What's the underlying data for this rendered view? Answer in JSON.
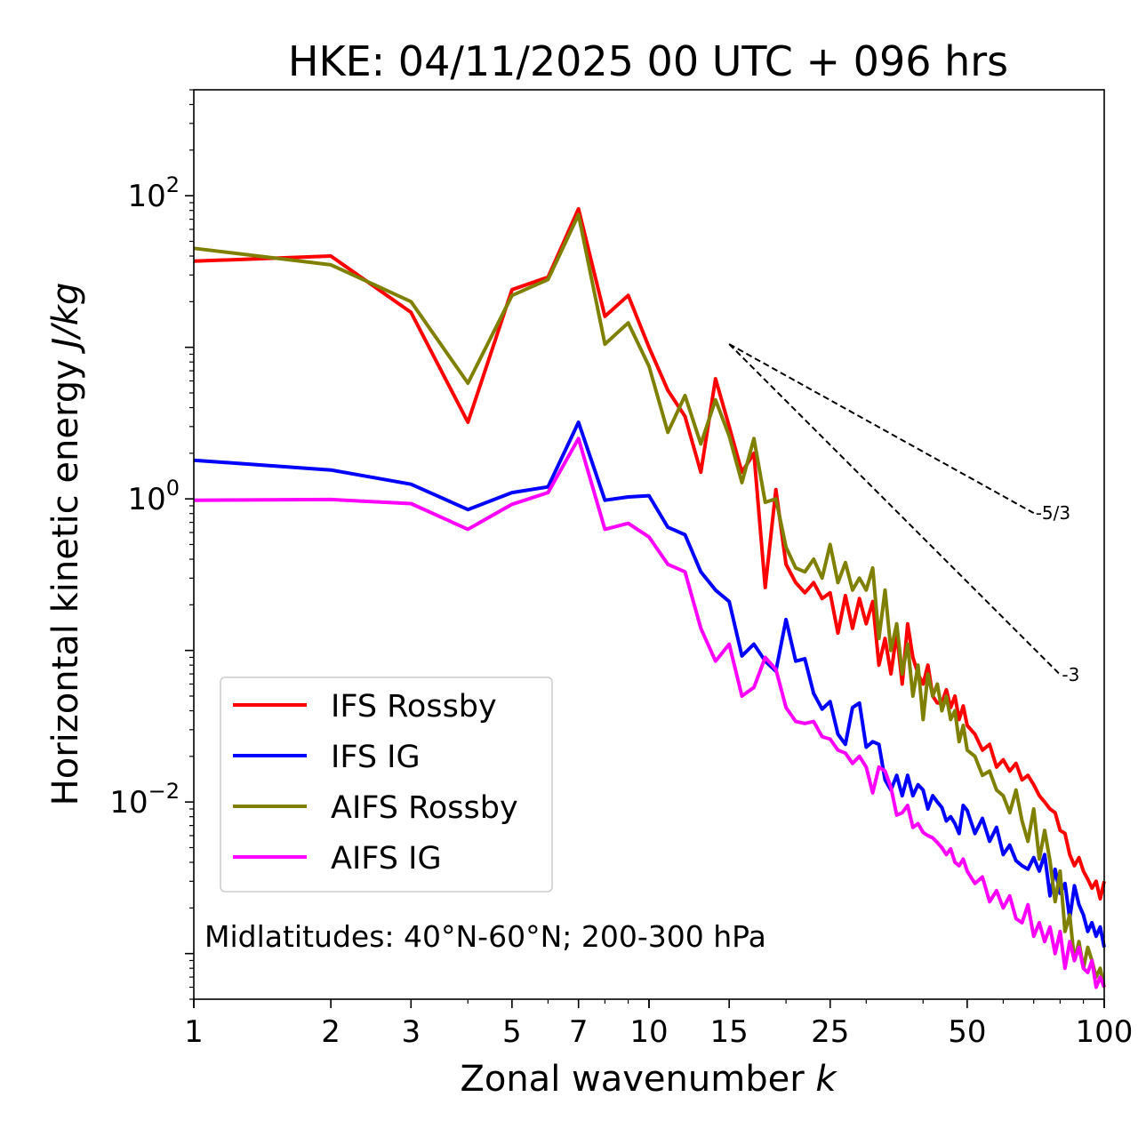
{
  "chart_data": {
    "type": "line",
    "title": "HKE: 04/11/2025 00 UTC + 096 hrs",
    "xlabel_text": "Zonal wavenumber ",
    "xlabel_var": "k",
    "ylabel_text": "Horizontal kinetic energy ",
    "ylabel_unit": "J/kg",
    "xscale": "log",
    "yscale": "log",
    "xlim": [
      1,
      100
    ],
    "ylim": [
      0.0005,
      500
    ],
    "xticks": [
      1,
      2,
      3,
      5,
      7,
      10,
      15,
      25,
      50,
      100
    ],
    "xtick_labels": [
      "1",
      "2",
      "3",
      "5",
      "7",
      "10",
      "15",
      "25",
      "50",
      "100"
    ],
    "yticks": [
      {
        "value": 100,
        "base": "10",
        "exp": "2"
      },
      {
        "value": 1,
        "base": "10",
        "exp": "0"
      },
      {
        "value": 0.01,
        "base": "10",
        "exp": "−2"
      }
    ],
    "legend_position": "lower-left",
    "annotation": "Midlatitudes: 40°N-60°N; 200-300 hPa",
    "reference_lines": [
      {
        "label": "-5/3",
        "slope": -1.6667,
        "x0": 15,
        "y0": 10.5,
        "x1": 70
      },
      {
        "label": "-3",
        "slope": -3,
        "x0": 15,
        "y0": 10.5,
        "x1": 80
      }
    ],
    "series": [
      {
        "name": "IFS Rossby",
        "color": "#ff0000",
        "x": [
          1,
          2,
          3,
          4,
          5,
          6,
          7,
          8,
          9,
          10,
          11,
          12,
          13,
          14,
          15,
          16,
          17,
          18,
          19,
          20,
          21,
          22,
          23,
          24,
          25,
          26,
          27,
          28,
          29,
          30,
          31,
          32,
          33,
          34,
          35,
          36,
          37,
          38,
          39,
          40,
          41,
          42,
          43,
          44,
          45,
          46,
          47,
          48,
          49,
          50,
          52,
          54,
          56,
          58,
          60,
          62,
          64,
          66,
          68,
          70,
          72,
          74,
          76,
          78,
          80,
          82,
          84,
          86,
          88,
          90,
          92,
          94,
          96,
          98,
          100
        ],
        "values": [
          37,
          40,
          17,
          3.2,
          24,
          29,
          82,
          16,
          22,
          10,
          5.2,
          3.5,
          1.5,
          6.2,
          3.0,
          1.5,
          2.0,
          0.26,
          1.15,
          0.37,
          0.28,
          0.24,
          0.28,
          0.22,
          0.24,
          0.13,
          0.23,
          0.14,
          0.22,
          0.15,
          0.21,
          0.08,
          0.12,
          0.07,
          0.13,
          0.06,
          0.15,
          0.09,
          0.07,
          0.06,
          0.08,
          0.05,
          0.045,
          0.045,
          0.055,
          0.042,
          0.05,
          0.035,
          0.043,
          0.032,
          0.028,
          0.022,
          0.024,
          0.017,
          0.019,
          0.016,
          0.018,
          0.014,
          0.015,
          0.013,
          0.011,
          0.01,
          0.009,
          0.0085,
          0.0065,
          0.0062,
          0.0045,
          0.0038,
          0.0043,
          0.0035,
          0.0031,
          0.0027,
          0.003,
          0.0023,
          0.003
        ]
      },
      {
        "name": "IFS IG",
        "color": "#0000ff",
        "x": [
          1,
          2,
          3,
          4,
          5,
          6,
          7,
          8,
          9,
          10,
          11,
          12,
          13,
          14,
          15,
          16,
          17,
          18,
          19,
          20,
          21,
          22,
          23,
          24,
          25,
          26,
          27,
          28,
          29,
          30,
          31,
          32,
          33,
          34,
          35,
          36,
          37,
          38,
          39,
          40,
          41,
          42,
          43,
          44,
          45,
          46,
          47,
          48,
          49,
          50,
          52,
          54,
          56,
          58,
          60,
          62,
          64,
          66,
          68,
          70,
          72,
          74,
          76,
          78,
          80,
          82,
          84,
          86,
          88,
          90,
          92,
          94,
          96,
          98,
          100
        ],
        "values": [
          1.8,
          1.55,
          1.25,
          0.85,
          1.1,
          1.2,
          3.2,
          0.98,
          1.03,
          1.05,
          0.65,
          0.58,
          0.33,
          0.25,
          0.21,
          0.092,
          0.11,
          0.085,
          0.073,
          0.16,
          0.085,
          0.088,
          0.052,
          0.041,
          0.046,
          0.028,
          0.024,
          0.042,
          0.045,
          0.023,
          0.025,
          0.024,
          0.014,
          0.012,
          0.015,
          0.011,
          0.015,
          0.011,
          0.013,
          0.012,
          0.009,
          0.011,
          0.01,
          0.0092,
          0.0075,
          0.008,
          0.0072,
          0.0062,
          0.0095,
          0.0088,
          0.0062,
          0.0078,
          0.0055,
          0.0068,
          0.0045,
          0.0052,
          0.0041,
          0.0038,
          0.0036,
          0.0043,
          0.0035,
          0.0045,
          0.0024,
          0.0036,
          0.0025,
          0.0029,
          0.0017,
          0.0028,
          0.0021,
          0.0018,
          0.0014,
          0.0016,
          0.0013,
          0.0015,
          0.0011
        ]
      },
      {
        "name": "AIFS Rossby",
        "color": "#808000",
        "x": [
          1,
          2,
          3,
          4,
          5,
          6,
          7,
          8,
          9,
          10,
          11,
          12,
          13,
          14,
          15,
          16,
          17,
          18,
          19,
          20,
          21,
          22,
          23,
          24,
          25,
          26,
          27,
          28,
          29,
          30,
          31,
          32,
          33,
          34,
          35,
          36,
          37,
          38,
          39,
          40,
          41,
          42,
          43,
          44,
          45,
          46,
          47,
          48,
          49,
          50,
          52,
          54,
          56,
          58,
          60,
          62,
          64,
          66,
          68,
          70,
          72,
          74,
          76,
          78,
          80,
          82,
          84,
          86,
          88,
          90,
          92,
          94,
          96,
          98,
          100
        ],
        "values": [
          45,
          35,
          20,
          5.8,
          22,
          28,
          75,
          10.5,
          14.5,
          7.5,
          2.75,
          4.8,
          2.3,
          4.5,
          2.6,
          1.28,
          2.5,
          0.95,
          1.0,
          0.48,
          0.35,
          0.33,
          0.4,
          0.3,
          0.5,
          0.28,
          0.38,
          0.25,
          0.3,
          0.25,
          0.35,
          0.12,
          0.25,
          0.1,
          0.15,
          0.07,
          0.11,
          0.05,
          0.08,
          0.035,
          0.07,
          0.05,
          0.06,
          0.04,
          0.05,
          0.035,
          0.04,
          0.025,
          0.032,
          0.022,
          0.02,
          0.015,
          0.016,
          0.012,
          0.011,
          0.0085,
          0.012,
          0.0075,
          0.0055,
          0.009,
          0.0042,
          0.0065,
          0.0041,
          0.0022,
          0.0035,
          0.0014,
          0.0018,
          0.0009,
          0.0012,
          0.0008,
          0.0011,
          0.0009,
          0.0007,
          0.0008,
          0.0006
        ]
      },
      {
        "name": "AIFS IG",
        "color": "#ff00ff",
        "x": [
          1,
          2,
          3,
          4,
          5,
          6,
          7,
          8,
          9,
          10,
          11,
          12,
          13,
          14,
          15,
          16,
          17,
          18,
          19,
          20,
          21,
          22,
          23,
          24,
          25,
          26,
          27,
          28,
          29,
          30,
          31,
          32,
          33,
          34,
          35,
          36,
          37,
          38,
          39,
          40,
          41,
          42,
          43,
          44,
          45,
          46,
          47,
          48,
          49,
          50,
          52,
          54,
          56,
          58,
          60,
          62,
          64,
          66,
          68,
          70,
          72,
          74,
          76,
          78,
          80,
          82,
          84,
          86,
          88,
          90,
          92,
          94,
          96,
          98,
          100
        ],
        "values": [
          0.98,
          0.99,
          0.93,
          0.63,
          0.92,
          1.1,
          2.5,
          0.63,
          0.69,
          0.56,
          0.37,
          0.33,
          0.14,
          0.085,
          0.11,
          0.05,
          0.057,
          0.09,
          0.075,
          0.042,
          0.034,
          0.033,
          0.034,
          0.027,
          0.026,
          0.022,
          0.021,
          0.018,
          0.02,
          0.017,
          0.0115,
          0.017,
          0.016,
          0.0125,
          0.0082,
          0.0085,
          0.0095,
          0.0068,
          0.0072,
          0.0063,
          0.006,
          0.0058,
          0.0054,
          0.005,
          0.0045,
          0.0049,
          0.004,
          0.0038,
          0.0042,
          0.0035,
          0.0029,
          0.0032,
          0.0022,
          0.0026,
          0.002,
          0.0024,
          0.0017,
          0.0016,
          0.0021,
          0.0013,
          0.0016,
          0.0012,
          0.0015,
          0.001,
          0.0014,
          0.0008,
          0.0012,
          0.0009,
          0.0011,
          0.0008,
          0.00075,
          0.0009,
          0.0006,
          0.0007,
          0.0006
        ]
      }
    ]
  }
}
